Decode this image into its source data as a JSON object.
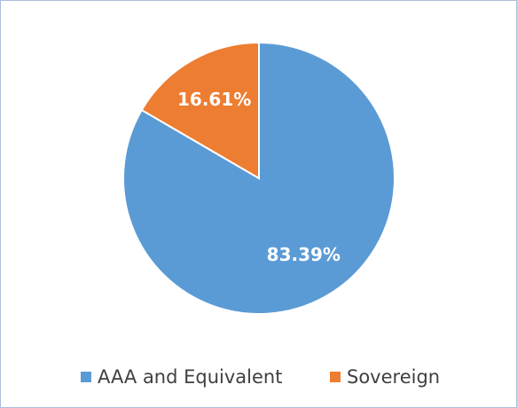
{
  "chart_data": {
    "type": "pie",
    "categories": [
      "AAA and Equivalent",
      "Sovereign"
    ],
    "values": [
      83.39,
      16.61
    ],
    "value_labels": [
      "83.39%",
      "16.61%"
    ],
    "colors": [
      "#5b9bd5",
      "#ed7d31"
    ],
    "legend": "bottom"
  }
}
